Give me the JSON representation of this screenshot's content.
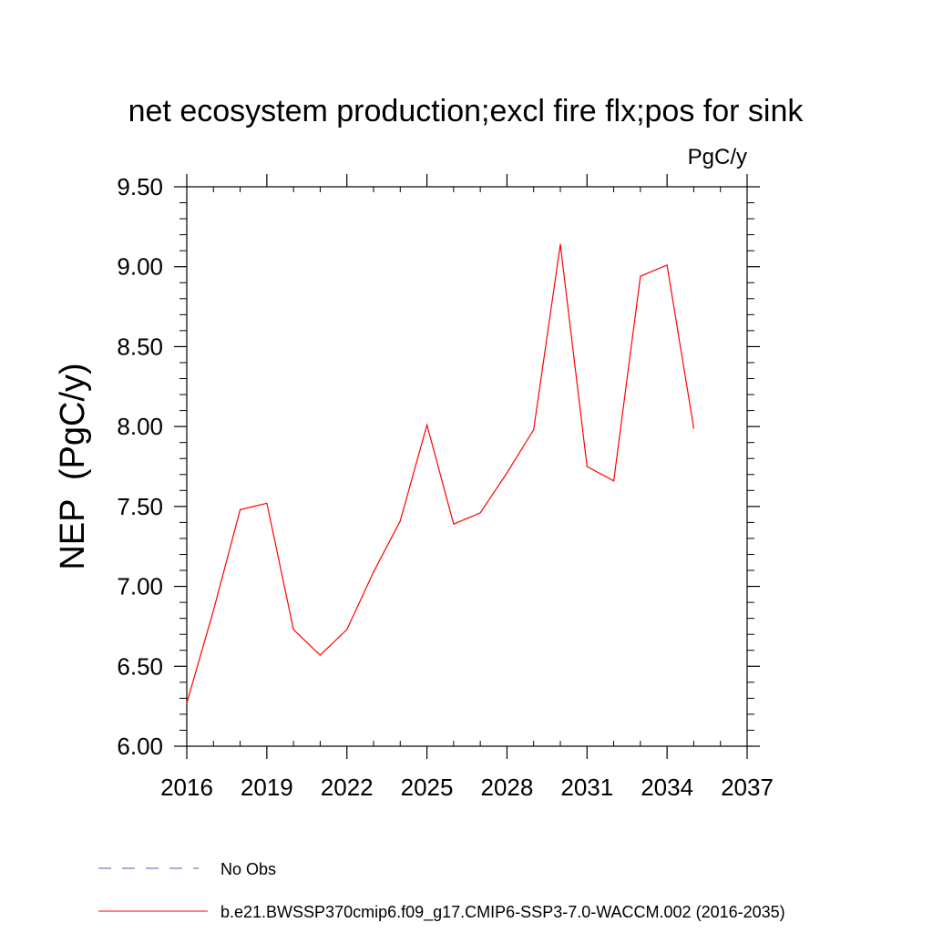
{
  "chart_data": {
    "type": "line",
    "title": "net ecosystem production;excl fire flx;pos for sink",
    "units_label": "PgC/y",
    "ylabel": "NEP  (PgC/y)",
    "xlabel": "",
    "xlim": [
      2016,
      2037
    ],
    "ylim": [
      6.0,
      9.5
    ],
    "x_ticks": [
      2016,
      2019,
      2022,
      2025,
      2028,
      2031,
      2034,
      2037
    ],
    "x_tick_labels": [
      "2016",
      "2019",
      "2022",
      "2025",
      "2028",
      "2031",
      "2034",
      "2037"
    ],
    "y_ticks": [
      6.0,
      6.5,
      7.0,
      7.5,
      8.0,
      8.5,
      9.0,
      9.5
    ],
    "y_tick_labels": [
      "6.00",
      "6.50",
      "7.00",
      "7.50",
      "8.00",
      "8.50",
      "9.00",
      "9.50"
    ],
    "grid": false,
    "legend_position": "bottom",
    "series": [
      {
        "name": "b.e21.BWSSP370cmip6.f09_g17.CMIP6-SSP3-7.0-WACCM.002 (2016-2035)",
        "color": "#ff0000",
        "style": "solid",
        "x": [
          2016,
          2017,
          2018,
          2019,
          2020,
          2021,
          2022,
          2023,
          2024,
          2025,
          2026,
          2027,
          2028,
          2029,
          2030,
          2031,
          2032,
          2033,
          2034,
          2035
        ],
        "y": [
          6.27,
          6.85,
          7.48,
          7.52,
          6.73,
          6.57,
          6.73,
          7.09,
          7.41,
          8.01,
          7.39,
          7.46,
          7.71,
          7.98,
          9.14,
          7.75,
          7.66,
          8.94,
          9.01,
          7.99
        ]
      }
    ],
    "legend": [
      {
        "label": "No Obs",
        "color": "#5a5ab0",
        "style": "dashed"
      },
      {
        "label": "b.e21.BWSSP370cmip6.f09_g17.CMIP6-SSP3-7.0-WACCM.002 (2016-2035)",
        "color": "#ff0000",
        "style": "solid"
      }
    ]
  }
}
